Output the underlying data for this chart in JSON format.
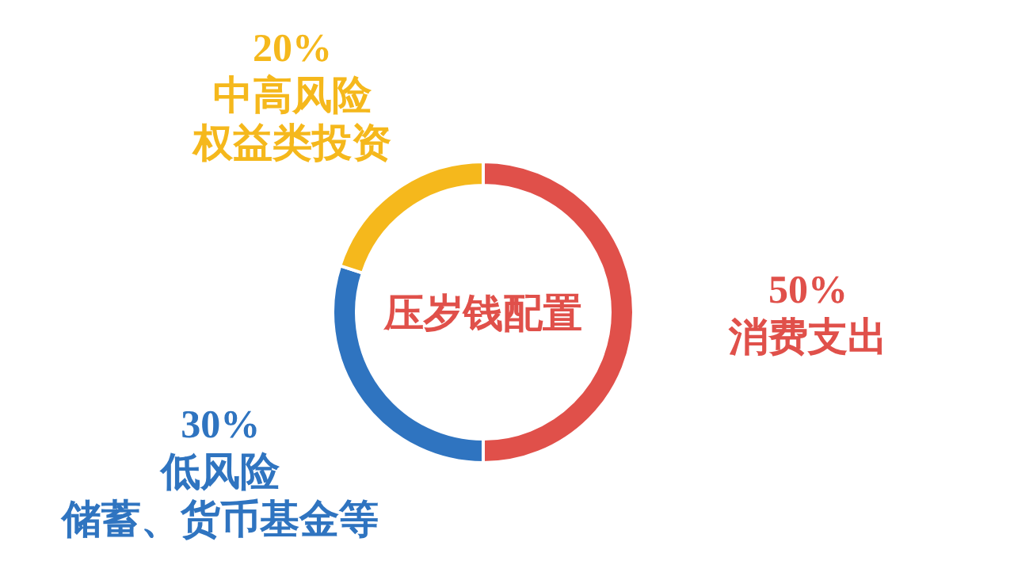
{
  "chart_data": {
    "type": "donut",
    "title": "压岁钱配置",
    "categories": [
      "消费支出",
      "低风险",
      "中高风险"
    ],
    "values": [
      50,
      30,
      20
    ],
    "value_labels": [
      "50%",
      "30%",
      "20%"
    ],
    "colors": [
      "#e0504a",
      "#2f74c0",
      "#f5b81c"
    ],
    "annotations": [
      "储蓄、货币基金等",
      "权益类投资"
    ]
  }
}
